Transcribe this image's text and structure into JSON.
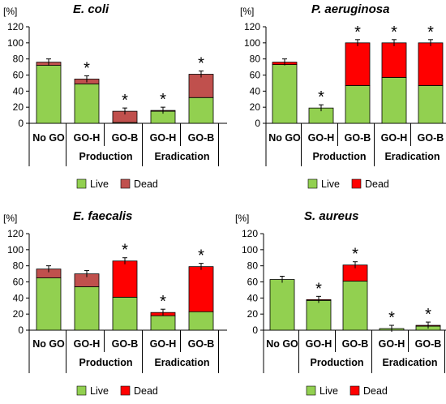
{
  "colors": {
    "live": "#92d050",
    "dead": "#ff0000",
    "dead_dark": "#c0504d",
    "axis": "#000000"
  },
  "chart_data": [
    {
      "type": "bar",
      "stacked": true,
      "title": "E. coli",
      "unit": "[%]",
      "ylim": [
        0,
        120
      ],
      "yticks": [
        "0",
        "20",
        "40",
        "60",
        "80",
        "100",
        "120"
      ],
      "categories": [
        "No GO",
        "GO-H",
        "GO-B",
        "GO-H",
        "GO-B"
      ],
      "groups": [
        {
          "label": "Production",
          "from": 1,
          "to": 2
        },
        {
          "label": "Eradication",
          "from": 3,
          "to": 4
        }
      ],
      "series": [
        {
          "name": "Live",
          "values": [
            72,
            49,
            1,
            15,
            32
          ]
        },
        {
          "name": "Dead",
          "values": [
            4,
            6,
            14,
            1,
            29
          ]
        }
      ],
      "significant": [
        false,
        true,
        true,
        true,
        true
      ],
      "dead_color": "dark",
      "legend": [
        "Live",
        "Dead"
      ]
    },
    {
      "type": "bar",
      "stacked": true,
      "title": "P. aeruginosa",
      "unit": "[%]",
      "ylim": [
        0,
        120
      ],
      "yticks": [
        "0",
        "20",
        "40",
        "60",
        "80",
        "100",
        "120"
      ],
      "categories": [
        "No GO",
        "GO-H",
        "GO-B",
        "GO-H",
        "GO-B"
      ],
      "groups": [
        {
          "label": "Production",
          "from": 1,
          "to": 2
        },
        {
          "label": "Eradication",
          "from": 3,
          "to": 4
        }
      ],
      "series": [
        {
          "name": "Live",
          "values": [
            73,
            19,
            47,
            57,
            47
          ]
        },
        {
          "name": "Dead",
          "values": [
            3,
            0,
            53,
            43,
            53
          ]
        }
      ],
      "significant": [
        false,
        true,
        true,
        true,
        true
      ],
      "dead_color": "bright",
      "legend": [
        "Live",
        "Dead"
      ]
    },
    {
      "type": "bar",
      "stacked": true,
      "title": "E. faecalis",
      "unit": "[%]",
      "ylim": [
        0,
        120
      ],
      "yticks": [
        "0",
        "20",
        "40",
        "60",
        "80",
        "100",
        "120"
      ],
      "categories": [
        "No GO",
        "GO-H",
        "GO-B",
        "GO-H",
        "GO-B"
      ],
      "groups": [
        {
          "label": "Production",
          "from": 1,
          "to": 2
        },
        {
          "label": "Eradication",
          "from": 3,
          "to": 4
        }
      ],
      "series": [
        {
          "name": "Live",
          "values": [
            65,
            54,
            41,
            18,
            23
          ]
        },
        {
          "name": "Dead",
          "values": [
            11,
            16,
            45,
            4,
            56
          ]
        }
      ],
      "significant": [
        false,
        false,
        true,
        true,
        true
      ],
      "dead_color": "mixed",
      "legend": [
        "Live",
        "Dead"
      ]
    },
    {
      "type": "bar",
      "stacked": true,
      "title": "S. aureus",
      "unit": "[%]",
      "ylim": [
        0,
        120
      ],
      "yticks": [
        "0",
        "20",
        "40",
        "60",
        "80",
        "100",
        "120"
      ],
      "categories": [
        "No GO",
        "GO-H",
        "GO-B",
        "GO-H",
        "GO-B"
      ],
      "groups": [
        {
          "label": "Production",
          "from": 1,
          "to": 2
        },
        {
          "label": "Eradication",
          "from": 3,
          "to": 4
        }
      ],
      "series": [
        {
          "name": "Live",
          "values": [
            63,
            37,
            61,
            2,
            5
          ]
        },
        {
          "name": "Dead",
          "values": [
            0,
            1,
            20,
            0,
            1
          ]
        }
      ],
      "significant": [
        false,
        true,
        true,
        true,
        true
      ],
      "dead_color": "bright",
      "legend": [
        "Live",
        "Dead"
      ]
    }
  ]
}
